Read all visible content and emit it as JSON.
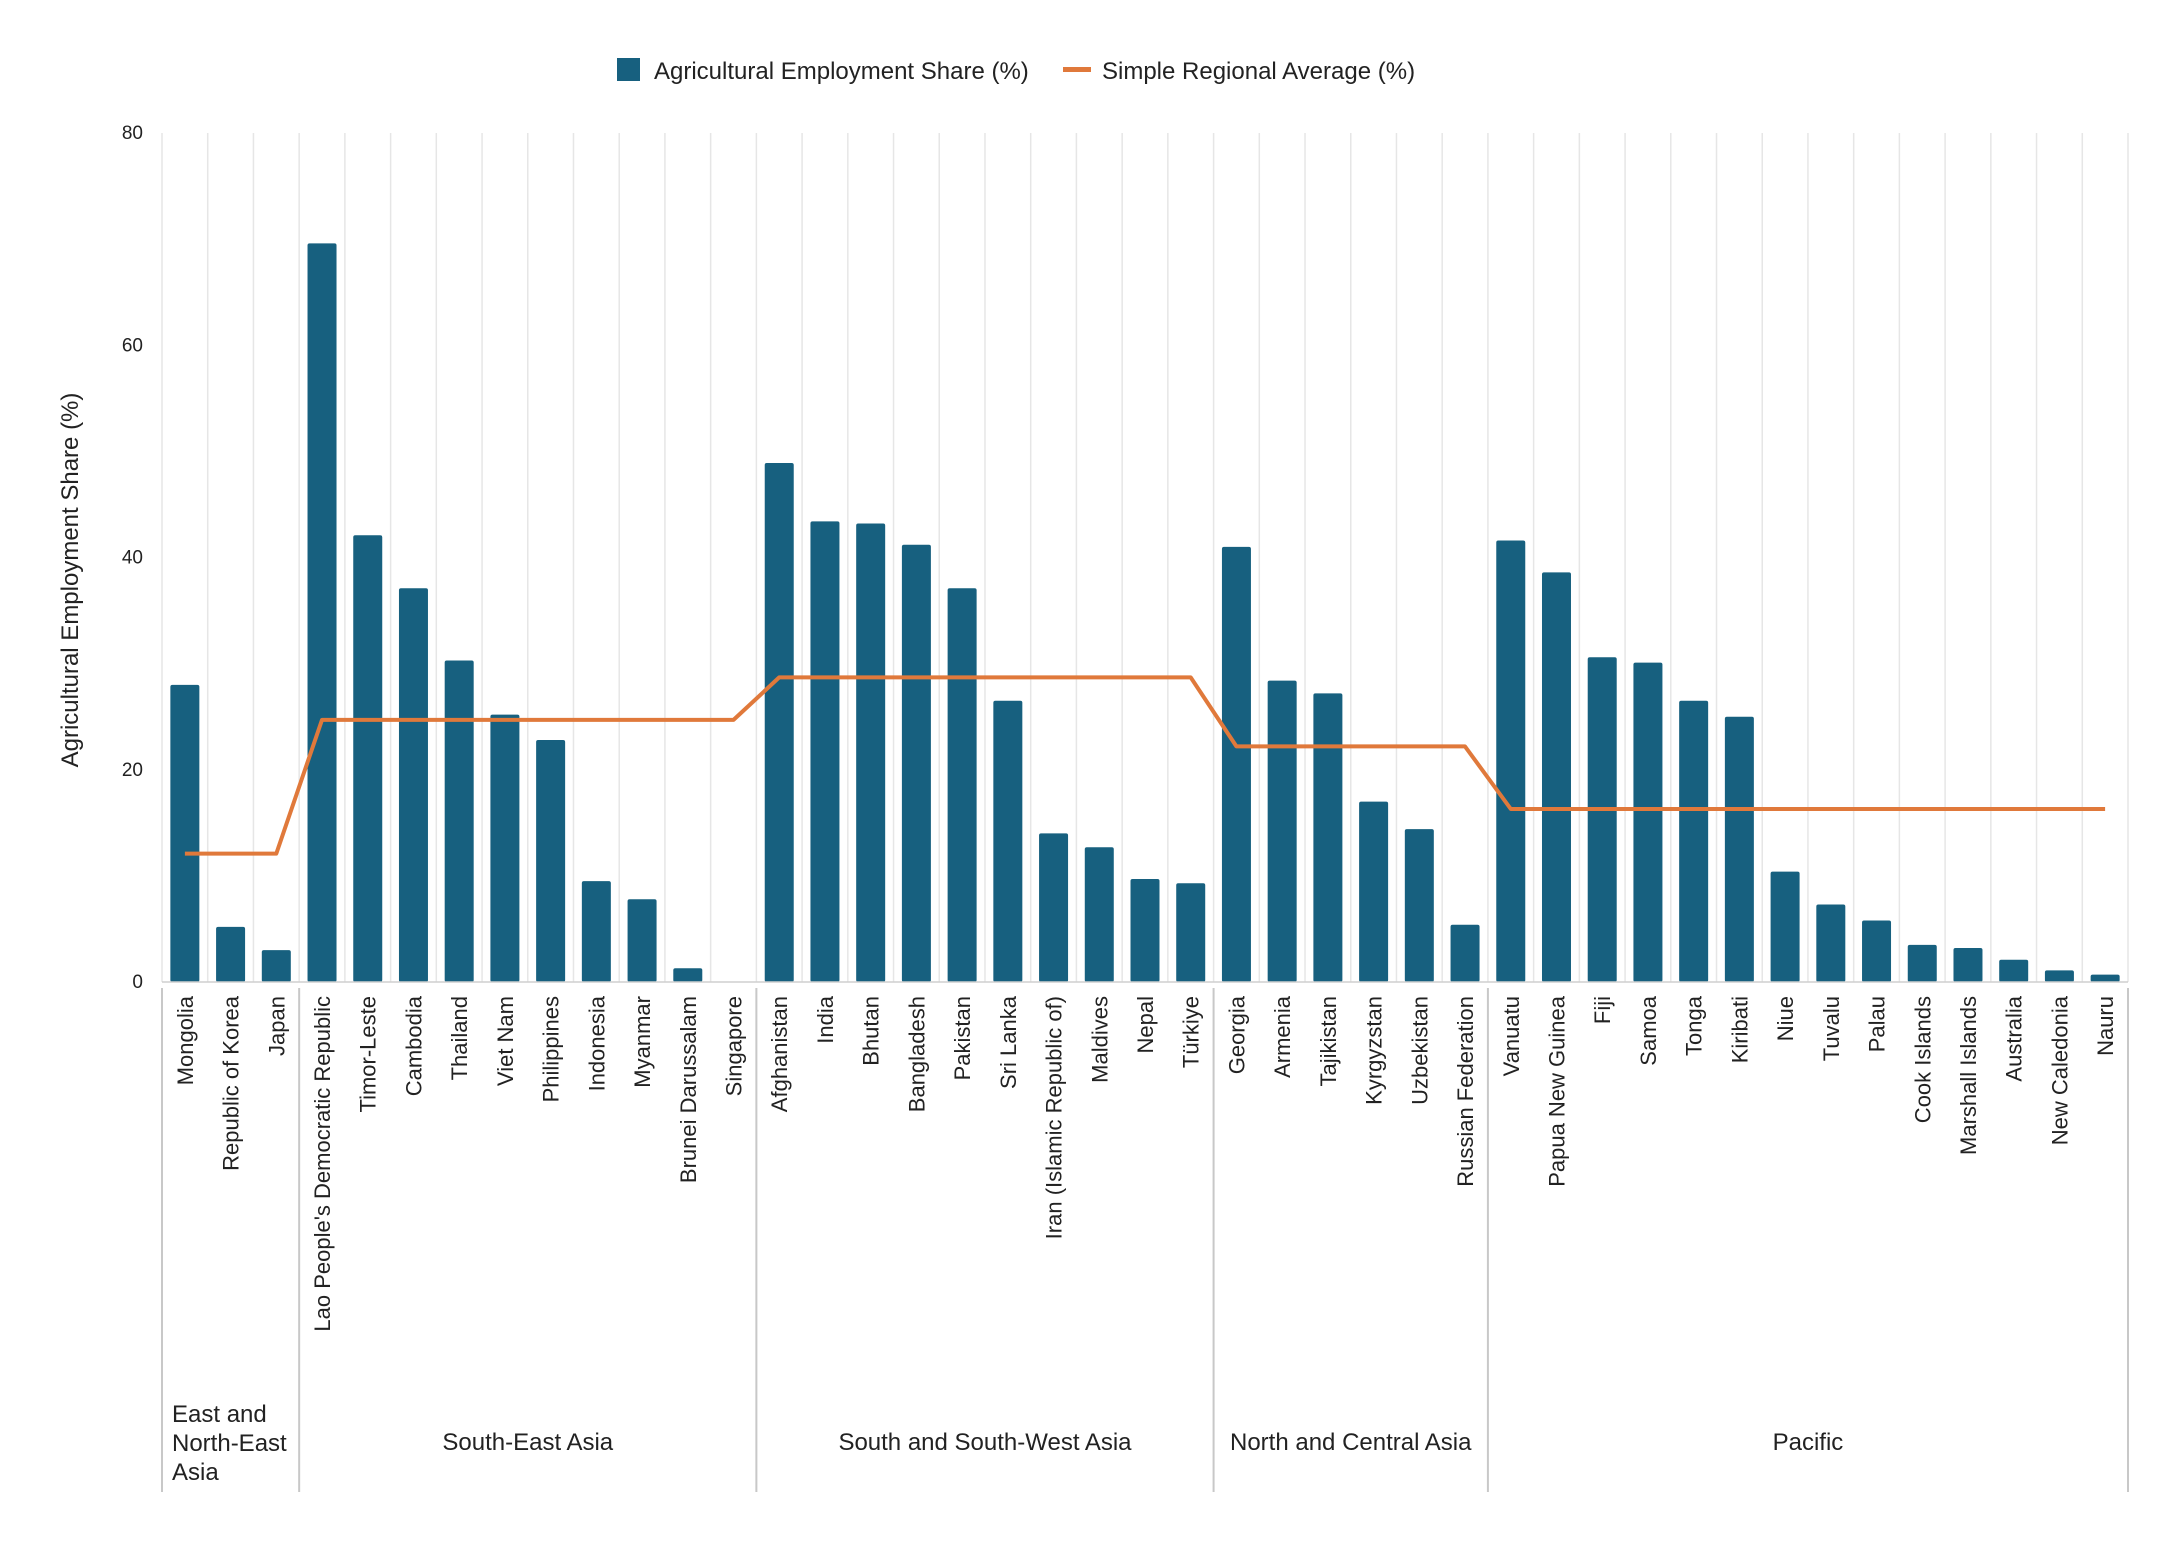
{
  "chart_data": {
    "type": "bar",
    "ylabel": "Agricultural Employment Share (%)",
    "ylim": [
      0,
      80
    ],
    "yticks": [
      0,
      20,
      40,
      60,
      80
    ],
    "grid": "vertical",
    "legend_position": "top-center",
    "legend": [
      {
        "label": "Agricultural Employment Share (%)",
        "kind": "bar",
        "color": "#17607f"
      },
      {
        "label": "Simple Regional Average (%)",
        "kind": "line",
        "color": "#e0793b"
      }
    ],
    "categories": [
      "Mongolia",
      "Republic of Korea",
      "Japan",
      "Lao People's Democratic Republic",
      "Timor-Leste",
      "Cambodia",
      "Thailand",
      "Viet Nam",
      "Philippines",
      "Indonesia",
      "Myanmar",
      "Brunei Darussalam",
      "Singapore",
      "Afghanistan",
      "India",
      "Bhutan",
      "Bangladesh",
      "Pakistan",
      "Sri Lanka",
      "Iran (Islamic Republic of)",
      "Maldives",
      "Nepal",
      "Türkiye",
      "Georgia",
      "Armenia",
      "Tajikistan",
      "Kyrgyzstan",
      "Uzbekistan",
      "Russian Federation",
      "Vanuatu",
      "Papua New Guinea",
      "Fiji",
      "Samoa",
      "Tonga",
      "Kiribati",
      "Niue",
      "Tuvalu",
      "Palau",
      "Cook Islands",
      "Marshall Islands",
      "Australia",
      "New Caledonia",
      "Nauru"
    ],
    "series": [
      {
        "name": "Agricultural Employment Share (%)",
        "type": "bar",
        "color": "#17607f",
        "values": [
          28.0,
          5.2,
          3.0,
          69.6,
          42.1,
          37.1,
          30.3,
          25.2,
          22.8,
          9.5,
          7.8,
          1.3,
          0.0,
          48.9,
          43.4,
          43.2,
          41.2,
          37.1,
          26.5,
          14.0,
          12.7,
          9.7,
          9.3,
          41.0,
          28.4,
          27.2,
          17.0,
          14.4,
          5.4,
          41.6,
          38.6,
          30.6,
          30.1,
          26.5,
          25.0,
          10.4,
          7.3,
          5.8,
          3.5,
          3.2,
          2.1,
          1.1,
          0.7
        ]
      },
      {
        "name": "Simple Regional Average (%)",
        "type": "line",
        "color": "#e0793b",
        "values": [
          12.1,
          12.1,
          12.1,
          24.7,
          24.7,
          24.7,
          24.7,
          24.7,
          24.7,
          24.7,
          24.7,
          24.7,
          24.7,
          28.7,
          28.7,
          28.7,
          28.7,
          28.7,
          28.7,
          28.7,
          28.7,
          28.7,
          28.7,
          22.2,
          22.2,
          22.2,
          22.2,
          22.2,
          22.2,
          16.3,
          16.3,
          16.3,
          16.3,
          16.3,
          16.3,
          16.3,
          16.3,
          16.3,
          16.3,
          16.3,
          16.3,
          16.3,
          16.3
        ]
      }
    ],
    "regions": [
      {
        "label_lines": [
          "East and",
          "North-East",
          "Asia"
        ],
        "start": 0,
        "end": 2
      },
      {
        "label_lines": [
          "South-East Asia"
        ],
        "start": 3,
        "end": 12
      },
      {
        "label_lines": [
          "South and South-West Asia"
        ],
        "start": 13,
        "end": 22
      },
      {
        "label_lines": [
          "North and Central Asia"
        ],
        "start": 23,
        "end": 28
      },
      {
        "label_lines": [
          "Pacific"
        ],
        "start": 29,
        "end": 42
      }
    ]
  }
}
